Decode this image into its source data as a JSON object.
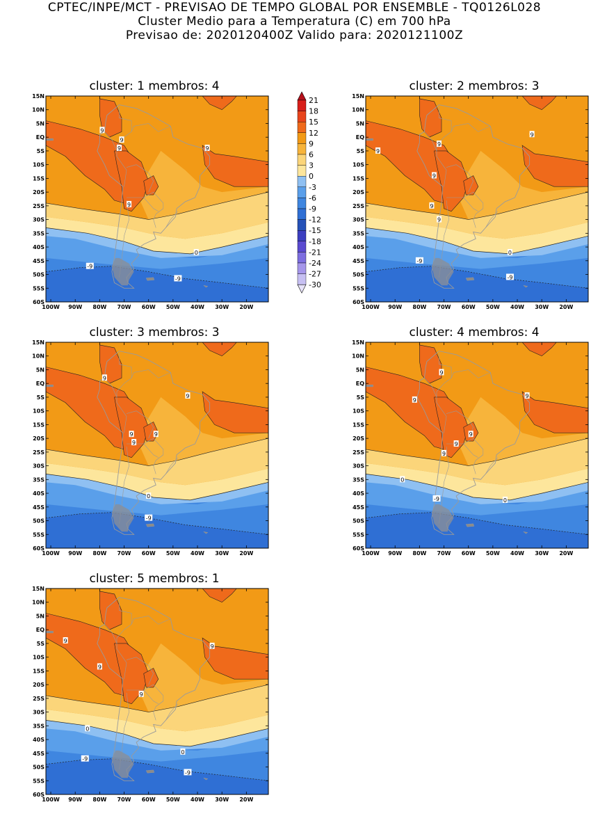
{
  "header": {
    "line1": "CPTEC/INPE/MCT - PREVISAO DE TEMPO GLOBAL POR ENSEMBLE - TQ0126L028",
    "line2": "Cluster Medio para a Temperatura (C) em 700 hPa",
    "line3": "Previsao de: 2020120400Z    Valido para: 2020121100Z"
  },
  "colors": {
    "c_ge12": "#ef6a1b",
    "c_9_12": "#f29a16",
    "c_6_9": "#f7b43b",
    "c_3_6": "#fbd57a",
    "c_0_3": "#fde69c",
    "c_m3_0": "#8fc0f2",
    "c_m6_m3": "#5a9fea",
    "c_m9_m6": "#3f86e0",
    "c_lt_m9": "#2f6fd4",
    "land_outline": "#9a9a9a"
  },
  "axes": {
    "y_ticks": [
      "15N",
      "10N",
      "5N",
      "EQ",
      "5S",
      "10S",
      "15S",
      "20S",
      "25S",
      "30S",
      "35S",
      "40S",
      "45S",
      "50S",
      "55S",
      "60S"
    ],
    "x_ticks": [
      "100W",
      "90W",
      "80W",
      "70W",
      "60W",
      "50W",
      "40W",
      "30W",
      "20W"
    ]
  },
  "legend": {
    "levels": [
      "21",
      "18",
      "15",
      "12",
      "9",
      "6",
      "3",
      "0",
      "-3",
      "-6",
      "-9",
      "-12",
      "-15",
      "-18",
      "-21",
      "-24",
      "-27",
      "-30"
    ],
    "colors": [
      "#b5101b",
      "#d81f1a",
      "#e8441c",
      "#ef6a1b",
      "#f29a16",
      "#f7b43b",
      "#fbd57a",
      "#fde69c",
      "#8fc0f2",
      "#5a9fea",
      "#3f86e0",
      "#2f6fd4",
      "#2551b8",
      "#3c3fc0",
      "#5a4ad0",
      "#7d6ee0",
      "#a596ea",
      "#c6bff2",
      "#e6e2f8"
    ]
  },
  "panels": [
    {
      "title": "cluster: 1   membros: 4",
      "labels": [
        {
          "text": "9",
          "lon": -79,
          "lat": 2.5
        },
        {
          "text": "9",
          "lon": -71,
          "lat": -1
        },
        {
          "text": "9",
          "lon": -72,
          "lat": -4
        },
        {
          "text": "9",
          "lon": -36,
          "lat": -4
        },
        {
          "text": "9",
          "lon": -68,
          "lat": -24.5
        },
        {
          "text": "0",
          "lon": -40.5,
          "lat": -42
        },
        {
          "text": "-9",
          "lon": -84,
          "lat": -47
        },
        {
          "text": "-9",
          "lon": -48,
          "lat": -51.5
        }
      ]
    },
    {
      "title": "cluster: 2   membros: 3",
      "labels": [
        {
          "text": "9",
          "lon": -97,
          "lat": -5
        },
        {
          "text": "9",
          "lon": -72,
          "lat": -2.5
        },
        {
          "text": "9",
          "lon": -34,
          "lat": 1
        },
        {
          "text": "9",
          "lon": -74,
          "lat": -14
        },
        {
          "text": "9",
          "lon": -75,
          "lat": -25
        },
        {
          "text": "9",
          "lon": -72,
          "lat": -30
        },
        {
          "text": "0",
          "lon": -43,
          "lat": -42
        },
        {
          "text": "-9",
          "lon": -80,
          "lat": -45
        },
        {
          "text": "-9",
          "lon": -43,
          "lat": -51
        }
      ]
    },
    {
      "title": "cluster: 3   membros: 3",
      "labels": [
        {
          "text": "9",
          "lon": -78,
          "lat": 2
        },
        {
          "text": "9",
          "lon": -44,
          "lat": -4.5
        },
        {
          "text": "9",
          "lon": -67,
          "lat": -18.5
        },
        {
          "text": "9",
          "lon": -57,
          "lat": -18.5
        },
        {
          "text": "9",
          "lon": -66,
          "lat": -21.5
        },
        {
          "text": "0",
          "lon": -60,
          "lat": -41
        },
        {
          "text": "-9",
          "lon": -60,
          "lat": -49
        }
      ]
    },
    {
      "title": "cluster: 4   membros: 4",
      "labels": [
        {
          "text": "9",
          "lon": -71,
          "lat": 4
        },
        {
          "text": "9",
          "lon": -82,
          "lat": -6
        },
        {
          "text": "9",
          "lon": -36,
          "lat": -4.5
        },
        {
          "text": "9",
          "lon": -59,
          "lat": -18.5
        },
        {
          "text": "9",
          "lon": -65,
          "lat": -22
        },
        {
          "text": "9",
          "lon": -70,
          "lat": -25.5
        },
        {
          "text": "0",
          "lon": -87,
          "lat": -35
        },
        {
          "text": "0",
          "lon": -45,
          "lat": -42.5
        },
        {
          "text": "-9",
          "lon": -73,
          "lat": -42
        }
      ]
    },
    {
      "title": "cluster: 5   membros: 1",
      "labels": [
        {
          "text": "9",
          "lon": -94,
          "lat": -4
        },
        {
          "text": "9",
          "lon": -34,
          "lat": -6
        },
        {
          "text": "9",
          "lon": -80,
          "lat": -13.5
        },
        {
          "text": "9",
          "lon": -63,
          "lat": -23.5
        },
        {
          "text": "0",
          "lon": -85,
          "lat": -36
        },
        {
          "text": "0",
          "lon": -46,
          "lat": -44.5
        },
        {
          "text": "-9",
          "lon": -86,
          "lat": -47
        },
        {
          "text": "-9",
          "lon": -44,
          "lat": -52
        }
      ]
    }
  ]
}
